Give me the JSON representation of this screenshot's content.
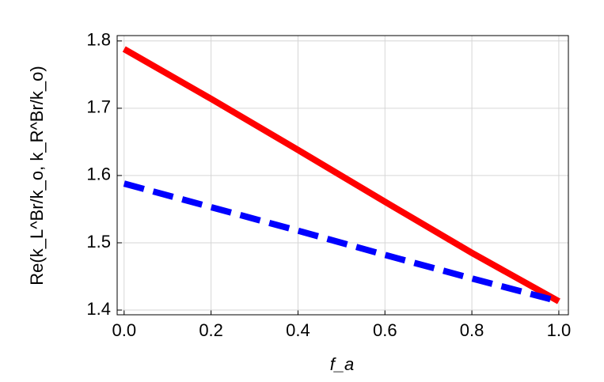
{
  "chart_data": {
    "type": "line",
    "xlabel": "f_a",
    "ylabel": "Re(k_L^Br/k_o, k_R^Br/k_o)",
    "x": [
      0,
      0.2,
      0.4,
      0.6,
      0.8,
      1.0
    ],
    "series": [
      {
        "color": "#ff0000",
        "dash": false,
        "values": [
          1.788,
          1.714,
          1.638,
          1.561,
          1.485,
          1.413
        ]
      },
      {
        "color": "#0000ff",
        "dash": true,
        "values": [
          1.588,
          1.553,
          1.518,
          1.482,
          1.447,
          1.413
        ]
      }
    ],
    "xlim": [
      -0.016,
      1.022
    ],
    "ylim": [
      1.393,
      1.808
    ],
    "xticks": [
      {
        "value": 0,
        "label": "0.0"
      },
      0.2,
      0.4,
      0.6,
      0.8,
      {
        "value": 1,
        "label": "1.0"
      }
    ],
    "yticks": [
      1.4,
      1.5,
      1.6,
      1.7,
      1.8
    ],
    "grid": true
  }
}
